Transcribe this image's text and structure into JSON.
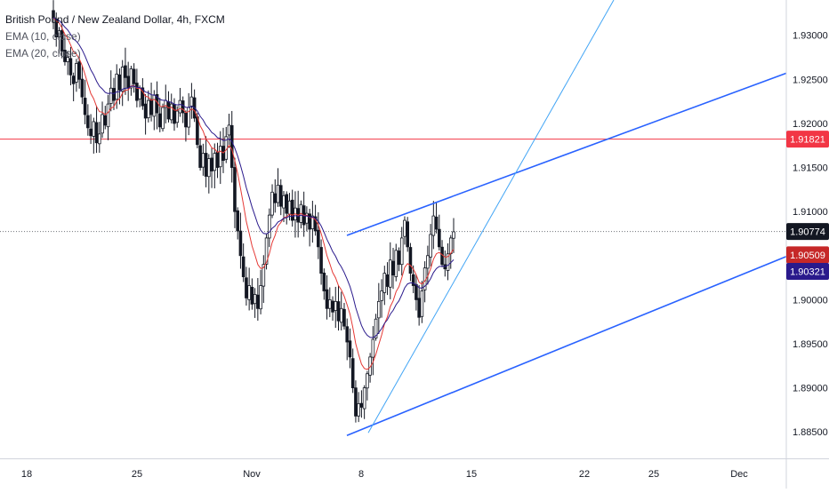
{
  "chart_data": {
    "type": "candlestick",
    "title": "British Pound / New Zealand Dollar, 4h, FXCM",
    "indicators": [
      {
        "name": "EMA (10, close)",
        "color": "#e53935"
      },
      {
        "name": "EMA (20, close)",
        "color": "#2a1a8c"
      }
    ],
    "y_axis": {
      "position": "right",
      "ylim": [
        1.882,
        1.934
      ],
      "ticks": [
        "1.93000",
        "1.92500",
        "1.92000",
        "1.91500",
        "1.91000",
        "1.90000",
        "1.89500",
        "1.89000",
        "1.88500"
      ]
    },
    "x_axis": {
      "ticks": [
        "18",
        "25",
        "Nov",
        "8",
        "15",
        "22",
        "25",
        "Dec"
      ]
    },
    "price_labels": [
      {
        "text": "1.91821",
        "bg": "#f23645",
        "fg": "#ffffff"
      },
      {
        "text": "1.90774",
        "bg": "#131722",
        "fg": "#ffffff"
      },
      {
        "text": "1.90509",
        "bg": "#c62828",
        "fg": "#ffffff"
      },
      {
        "text": "1.90321",
        "bg": "#2a1a8c",
        "fg": "#ffffff"
      }
    ],
    "horizontal_line": {
      "value": 1.91821,
      "color": "#f23645"
    },
    "last_price_line": {
      "value": 1.90774,
      "color": "#131722"
    },
    "grid": false,
    "candles": {
      "count": 140,
      "close_series": [
        1.932,
        1.9298,
        1.9305,
        1.9282,
        1.927,
        1.9275,
        1.9255,
        1.9245,
        1.9268,
        1.925,
        1.923,
        1.921,
        1.9195,
        1.9186,
        1.9202,
        1.9178,
        1.9188,
        1.921,
        1.9198,
        1.9222,
        1.924,
        1.9226,
        1.9256,
        1.9238,
        1.9264,
        1.9252,
        1.924,
        1.9262,
        1.9245,
        1.9226,
        1.924,
        1.922,
        1.9206,
        1.9226,
        1.921,
        1.9232,
        1.9212,
        1.9196,
        1.9218,
        1.9226,
        1.9205,
        1.9222,
        1.92,
        1.9214,
        1.9226,
        1.9212,
        1.9196,
        1.9218,
        1.923,
        1.9206,
        1.9176,
        1.915,
        1.9166,
        1.914,
        1.916,
        1.9146,
        1.9166,
        1.915,
        1.9174,
        1.9158,
        1.9185,
        1.9198,
        1.915,
        1.91,
        1.9078,
        1.905,
        1.9026,
        1.9002,
        1.9016,
        1.8995,
        1.9006,
        1.899,
        1.9016,
        1.904,
        1.907,
        1.9096,
        1.9122,
        1.911,
        1.913,
        1.9106,
        1.9118,
        1.9098,
        1.9112,
        1.909,
        1.9104,
        1.9088,
        1.9108,
        1.9085,
        1.9098,
        1.908,
        1.9095,
        1.9078,
        1.906,
        1.903,
        1.901,
        1.899,
        1.9,
        1.8986,
        1.8998,
        1.8976,
        1.899,
        1.897,
        1.8952,
        1.8935,
        1.89,
        1.8868,
        1.8882,
        1.8878,
        1.89,
        1.8916,
        1.8935,
        1.8955,
        1.8978,
        1.8998,
        1.901,
        1.903,
        1.9015,
        1.9045,
        1.9028,
        1.9056,
        1.904,
        1.907,
        1.909,
        1.906,
        1.903,
        1.9016,
        1.9,
        1.898,
        1.901,
        1.9036,
        1.905,
        1.9074,
        1.9095,
        1.908,
        1.906,
        1.904,
        1.9035,
        1.9052,
        1.907,
        1.9077
      ]
    }
  }
}
